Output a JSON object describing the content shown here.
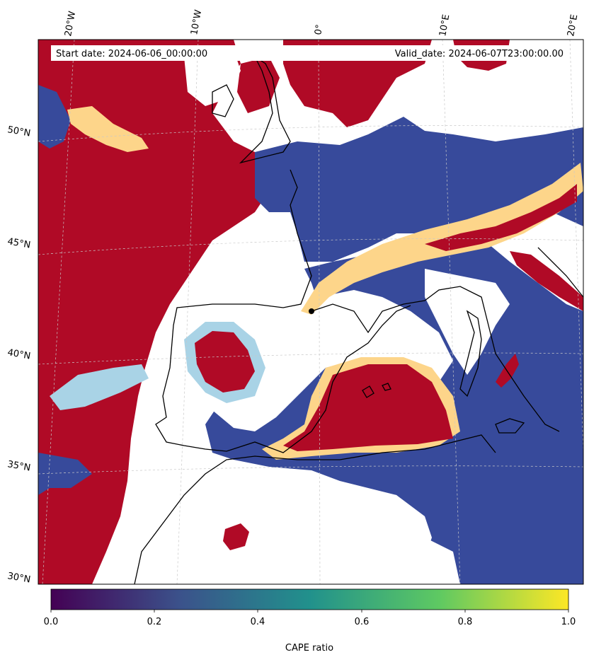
{
  "header": {
    "start_date": "Start date: 2024-06-06_00:00:00",
    "valid_date": "Valid_date: 2024-06-07T23:00:00.00"
  },
  "map": {
    "lon_labels": [
      "20°W",
      "10°W",
      "0°",
      "10°E",
      "20°E"
    ],
    "lat_labels": [
      "50°N",
      "45°N",
      "40°N",
      "35°N",
      "30°N"
    ],
    "colors": {
      "high": "#b00a26",
      "low": "#374a9b",
      "mid_warm": "#fdd58a",
      "mid_cool": "#a9d3e6",
      "coast": "#000000",
      "grid": "#c8c8c8"
    }
  },
  "colorbar": {
    "label": "CAPE ratio",
    "ticks": [
      "0.0",
      "0.2",
      "0.4",
      "0.6",
      "0.8",
      "1.0"
    ],
    "colormap": "viridis",
    "colors": [
      "#440154",
      "#3b528b",
      "#21918c",
      "#5ec962",
      "#fde725"
    ]
  }
}
